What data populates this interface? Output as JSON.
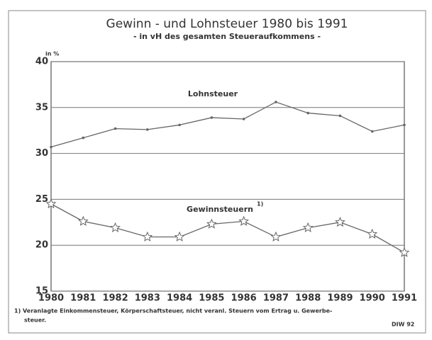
{
  "chart_data": {
    "type": "line",
    "title": "Gewinn - und Lohnsteuer 1980 bis 1991",
    "subtitle": "- in vH des gesamten Steueraufkommens -",
    "y_label": "in %",
    "categories": [
      "1980",
      "1981",
      "1982",
      "1983",
      "1984",
      "1985",
      "1986",
      "1987",
      "1988",
      "1989",
      "1990",
      "1991"
    ],
    "series": [
      {
        "name": "Lohnsteuer",
        "color": "#666",
        "marker": "circle",
        "values": [
          30.7,
          31.7,
          32.7,
          32.6,
          33.1,
          33.9,
          33.75,
          35.6,
          34.4,
          34.1,
          32.4,
          33.1
        ]
      },
      {
        "name": "Gewinnsteuern",
        "color": "#666",
        "marker": "star",
        "note": "1)",
        "values": [
          24.5,
          22.6,
          21.9,
          20.9,
          20.9,
          22.3,
          22.6,
          20.9,
          21.9,
          22.5,
          21.2,
          19.2
        ]
      }
    ],
    "ylim": [
      15,
      40
    ],
    "yticks": [
      15,
      20,
      25,
      30,
      35,
      40
    ],
    "grid": true,
    "footnote": [
      "1) Veranlagte Einkommensteuer, Körperschaftsteuer, nicht veranl. Steuern vom Ertrag u. Gewerbe-",
      "steuer."
    ],
    "source": "DIW 92"
  }
}
